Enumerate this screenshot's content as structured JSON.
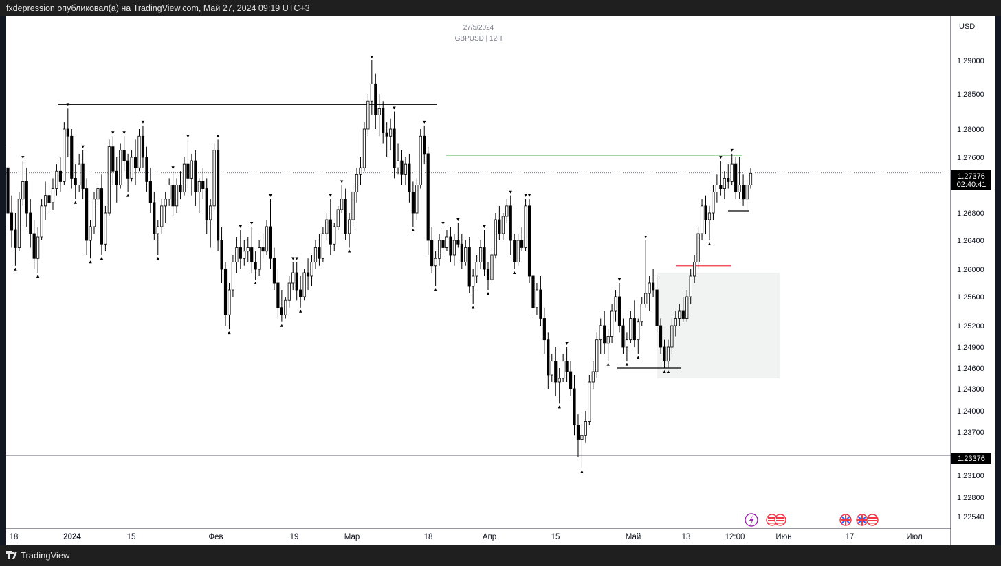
{
  "header": {
    "publisher": "fxdepression опубликовал(а) на TradingView.com, Май 27, 2024 09:19 UTC+3"
  },
  "footer": {
    "brand": "TradingView"
  },
  "chart_data": {
    "type": "candlestick",
    "title": "27/5/2024",
    "subtitle": "GBPUSD | 12H",
    "currency": "USD",
    "y_ticks": [
      1.29,
      1.285,
      1.28,
      1.276,
      1.268,
      1.264,
      1.26,
      1.256,
      1.252,
      1.249,
      1.246,
      1.243,
      1.24,
      1.237,
      1.231,
      1.228,
      1.2254
    ],
    "y_tick_labels": [
      "1.29000",
      "1.28500",
      "1.28000",
      "1.27600",
      "1.26800",
      "1.26400",
      "1.26000",
      "1.25600",
      "1.25200",
      "1.24900",
      "1.24600",
      "1.24300",
      "1.24000",
      "1.23700",
      "1.23100",
      "1.22800",
      "1.22540"
    ],
    "x_tick_labels": [
      "18",
      "2024",
      "15",
      "Фев",
      "19",
      "Мар",
      "18",
      "Апр",
      "15",
      "Май",
      "13",
      "12:00",
      "Июн",
      "17",
      "Июл"
    ],
    "current_price": {
      "value": 1.27376,
      "label": "1.27376",
      "countdown": "02:40:41"
    },
    "horizontal_line": {
      "value": 1.23376,
      "label": "1.23376"
    },
    "levels": [
      {
        "name": "march-high-line",
        "value": 1.2835,
        "color": "#000000"
      },
      {
        "name": "green-level-line",
        "value": 1.2763,
        "color": "#4caf50"
      },
      {
        "name": "red-level-line",
        "value": 1.2605,
        "color": "#f23645"
      }
    ],
    "zone": {
      "top": 1.2595,
      "bottom": 1.2445,
      "color": "#f0f3f2"
    },
    "colors": {
      "up": "#ffffff",
      "down": "#000000",
      "wick": "#000000"
    },
    "candles": [
      [
        1.2745,
        1.2775,
        1.265,
        1.268
      ],
      [
        1.268,
        1.2705,
        1.263,
        1.2655
      ],
      [
        1.2655,
        1.268,
        1.2605,
        1.263
      ],
      [
        1.263,
        1.271,
        1.2625,
        1.27
      ],
      [
        1.27,
        1.2755,
        1.269,
        1.2725
      ],
      [
        1.2725,
        1.2745,
        1.266,
        1.268
      ],
      [
        1.268,
        1.27,
        1.263,
        1.265
      ],
      [
        1.265,
        1.267,
        1.26,
        1.2615
      ],
      [
        1.2615,
        1.266,
        1.2595,
        1.2645
      ],
      [
        1.2645,
        1.27,
        1.264,
        1.269
      ],
      [
        1.269,
        1.2725,
        1.267,
        1.2705
      ],
      [
        1.2705,
        1.272,
        1.268,
        1.2695
      ],
      [
        1.2695,
        1.273,
        1.2685,
        1.2715
      ],
      [
        1.2715,
        1.275,
        1.2705,
        1.274
      ],
      [
        1.274,
        1.276,
        1.271,
        1.2725
      ],
      [
        1.2725,
        1.281,
        1.272,
        1.28
      ],
      [
        1.28,
        1.283,
        1.276,
        1.279
      ],
      [
        1.279,
        1.28,
        1.2715,
        1.273
      ],
      [
        1.273,
        1.275,
        1.27,
        1.272
      ],
      [
        1.272,
        1.2765,
        1.271,
        1.275
      ],
      [
        1.275,
        1.277,
        1.27,
        1.2715
      ],
      [
        1.2715,
        1.273,
        1.262,
        1.264
      ],
      [
        1.264,
        1.267,
        1.2615,
        1.266
      ],
      [
        1.266,
        1.271,
        1.265,
        1.27
      ],
      [
        1.27,
        1.2725,
        1.269,
        1.2715
      ],
      [
        1.2715,
        1.2735,
        1.262,
        1.2635
      ],
      [
        1.2635,
        1.269,
        1.2625,
        1.268
      ],
      [
        1.268,
        1.2785,
        1.2675,
        1.2775
      ],
      [
        1.2775,
        1.279,
        1.272,
        1.274
      ],
      [
        1.274,
        1.276,
        1.2695,
        1.272
      ],
      [
        1.272,
        1.278,
        1.2715,
        1.277
      ],
      [
        1.277,
        1.279,
        1.274,
        1.2755
      ],
      [
        1.2755,
        1.2765,
        1.271,
        1.273
      ],
      [
        1.273,
        1.277,
        1.2725,
        1.276
      ],
      [
        1.276,
        1.2785,
        1.272,
        1.2745
      ],
      [
        1.2745,
        1.28,
        1.274,
        1.279
      ],
      [
        1.279,
        1.2805,
        1.2745,
        1.276
      ],
      [
        1.276,
        1.2775,
        1.271,
        1.2725
      ],
      [
        1.2725,
        1.2745,
        1.268,
        1.2695
      ],
      [
        1.2695,
        1.271,
        1.264,
        1.265
      ],
      [
        1.265,
        1.267,
        1.262,
        1.266
      ],
      [
        1.266,
        1.27,
        1.265,
        1.269
      ],
      [
        1.269,
        1.271,
        1.2665,
        1.27
      ],
      [
        1.27,
        1.273,
        1.269,
        1.272
      ],
      [
        1.272,
        1.274,
        1.2675,
        1.269
      ],
      [
        1.269,
        1.273,
        1.268,
        1.272
      ],
      [
        1.272,
        1.274,
        1.27,
        1.271
      ],
      [
        1.271,
        1.276,
        1.2705,
        1.275
      ],
      [
        1.275,
        1.2785,
        1.2715,
        1.273
      ],
      [
        1.273,
        1.2765,
        1.2705,
        1.2755
      ],
      [
        1.2755,
        1.277,
        1.269,
        1.271
      ],
      [
        1.271,
        1.273,
        1.268,
        1.2725
      ],
      [
        1.2725,
        1.2745,
        1.27,
        1.2715
      ],
      [
        1.2715,
        1.273,
        1.265,
        1.267
      ],
      [
        1.267,
        1.27,
        1.263,
        1.269
      ],
      [
        1.269,
        1.278,
        1.2685,
        1.277
      ],
      [
        1.277,
        1.2785,
        1.2625,
        1.264
      ],
      [
        1.264,
        1.266,
        1.258,
        1.26
      ],
      [
        1.26,
        1.261,
        1.252,
        1.2535
      ],
      [
        1.2535,
        1.258,
        1.2515,
        1.257
      ],
      [
        1.257,
        1.262,
        1.256,
        1.261
      ],
      [
        1.261,
        1.2645,
        1.2595,
        1.263
      ],
      [
        1.263,
        1.2655,
        1.26,
        1.2615
      ],
      [
        1.2615,
        1.264,
        1.2605,
        1.2625
      ],
      [
        1.2625,
        1.2645,
        1.261,
        1.263
      ],
      [
        1.263,
        1.266,
        1.2595,
        1.261
      ],
      [
        1.261,
        1.2625,
        1.2585,
        1.26
      ],
      [
        1.26,
        1.264,
        1.259,
        1.263
      ],
      [
        1.263,
        1.265,
        1.2615,
        1.2625
      ],
      [
        1.2625,
        1.267,
        1.262,
        1.266
      ],
      [
        1.266,
        1.27,
        1.26,
        1.2615
      ],
      [
        1.2615,
        1.263,
        1.257,
        1.258
      ],
      [
        1.258,
        1.26,
        1.253,
        1.2545
      ],
      [
        1.2545,
        1.257,
        1.2525,
        1.2535
      ],
      [
        1.2535,
        1.256,
        1.253,
        1.2555
      ],
      [
        1.2555,
        1.259,
        1.2545,
        1.258
      ],
      [
        1.258,
        1.261,
        1.257,
        1.2595
      ],
      [
        1.2595,
        1.261,
        1.2555,
        1.257
      ],
      [
        1.257,
        1.259,
        1.2545,
        1.256
      ],
      [
        1.256,
        1.26,
        1.2555,
        1.2595
      ],
      [
        1.2595,
        1.2615,
        1.257,
        1.259
      ],
      [
        1.259,
        1.262,
        1.2575,
        1.261
      ],
      [
        1.261,
        1.264,
        1.26,
        1.263
      ],
      [
        1.263,
        1.265,
        1.2605,
        1.2615
      ],
      [
        1.2615,
        1.266,
        1.261,
        1.265
      ],
      [
        1.265,
        1.268,
        1.264,
        1.267
      ],
      [
        1.267,
        1.27,
        1.262,
        1.2635
      ],
      [
        1.2635,
        1.2665,
        1.2625,
        1.266
      ],
      [
        1.266,
        1.269,
        1.2655,
        1.2685
      ],
      [
        1.2685,
        1.272,
        1.268,
        1.27
      ],
      [
        1.27,
        1.2715,
        1.264,
        1.265
      ],
      [
        1.265,
        1.268,
        1.263,
        1.267
      ],
      [
        1.267,
        1.272,
        1.266,
        1.271
      ],
      [
        1.271,
        1.2745,
        1.2695,
        1.2735
      ],
      [
        1.2735,
        1.276,
        1.272,
        1.2745
      ],
      [
        1.2745,
        1.281,
        1.274,
        1.28
      ],
      [
        1.28,
        1.285,
        1.279,
        1.284
      ],
      [
        1.284,
        1.29,
        1.282,
        1.2865
      ],
      [
        1.2865,
        1.288,
        1.28,
        1.282
      ],
      [
        1.282,
        1.285,
        1.279,
        1.283
      ],
      [
        1.283,
        1.284,
        1.278,
        1.2795
      ],
      [
        1.2795,
        1.281,
        1.276,
        1.279
      ],
      [
        1.279,
        1.2815,
        1.277,
        1.28
      ],
      [
        1.28,
        1.2825,
        1.273,
        1.2745
      ],
      [
        1.2745,
        1.278,
        1.2735,
        1.2755
      ],
      [
        1.2755,
        1.277,
        1.272,
        1.2735
      ],
      [
        1.2735,
        1.276,
        1.272,
        1.275
      ],
      [
        1.275,
        1.2765,
        1.2695,
        1.271
      ],
      [
        1.271,
        1.2725,
        1.266,
        1.268
      ],
      [
        1.268,
        1.273,
        1.267,
        1.272
      ],
      [
        1.272,
        1.28,
        1.2715,
        1.279
      ],
      [
        1.279,
        1.2805,
        1.275,
        1.2765
      ],
      [
        1.2765,
        1.2775,
        1.262,
        1.264
      ],
      [
        1.264,
        1.266,
        1.2595,
        1.2605
      ],
      [
        1.2605,
        1.2625,
        1.2575,
        1.2615
      ],
      [
        1.2615,
        1.265,
        1.2605,
        1.264
      ],
      [
        1.264,
        1.266,
        1.262,
        1.263
      ],
      [
        1.263,
        1.2655,
        1.2625,
        1.2645
      ],
      [
        1.2645,
        1.266,
        1.261,
        1.262
      ],
      [
        1.262,
        1.265,
        1.2605,
        1.264
      ],
      [
        1.264,
        1.2665,
        1.263,
        1.2635
      ],
      [
        1.2635,
        1.265,
        1.26,
        1.261
      ],
      [
        1.261,
        1.264,
        1.2605,
        1.263
      ],
      [
        1.263,
        1.2645,
        1.2565,
        1.2575
      ],
      [
        1.2575,
        1.26,
        1.255,
        1.259
      ],
      [
        1.259,
        1.262,
        1.258,
        1.261
      ],
      [
        1.261,
        1.264,
        1.26,
        1.263
      ],
      [
        1.263,
        1.2655,
        1.259,
        1.26
      ],
      [
        1.26,
        1.261,
        1.257,
        1.2585
      ],
      [
        1.2585,
        1.263,
        1.258,
        1.262
      ],
      [
        1.262,
        1.268,
        1.2615,
        1.267
      ],
      [
        1.267,
        1.269,
        1.264,
        1.265
      ],
      [
        1.265,
        1.268,
        1.264,
        1.2675
      ],
      [
        1.2675,
        1.27,
        1.2665,
        1.269
      ],
      [
        1.269,
        1.2705,
        1.262,
        1.264
      ],
      [
        1.264,
        1.265,
        1.26,
        1.261
      ],
      [
        1.261,
        1.265,
        1.2605,
        1.264
      ],
      [
        1.264,
        1.266,
        1.2625,
        1.263
      ],
      [
        1.263,
        1.27,
        1.2625,
        1.269
      ],
      [
        1.269,
        1.27,
        1.258,
        1.259
      ],
      [
        1.259,
        1.26,
        1.253,
        1.2545
      ],
      [
        1.2545,
        1.258,
        1.2535,
        1.257
      ],
      [
        1.257,
        1.259,
        1.252,
        1.253
      ],
      [
        1.253,
        1.2545,
        1.248,
        1.25
      ],
      [
        1.25,
        1.251,
        1.243,
        1.245
      ],
      [
        1.245,
        1.248,
        1.244,
        1.247
      ],
      [
        1.247,
        1.249,
        1.242,
        1.244
      ],
      [
        1.244,
        1.246,
        1.241,
        1.2445
      ],
      [
        1.2445,
        1.248,
        1.244,
        1.247
      ],
      [
        1.247,
        1.249,
        1.244,
        1.2455
      ],
      [
        1.2455,
        1.247,
        1.242,
        1.243
      ],
      [
        1.243,
        1.245,
        1.2365,
        1.238
      ],
      [
        1.238,
        1.2395,
        1.2335,
        1.236
      ],
      [
        1.236,
        1.238,
        1.232,
        1.2365
      ],
      [
        1.2365,
        1.24,
        1.2355,
        1.2385
      ],
      [
        1.2385,
        1.245,
        1.238,
        1.244
      ],
      [
        1.244,
        1.247,
        1.243,
        1.2455
      ],
      [
        1.2455,
        1.251,
        1.2445,
        1.25
      ],
      [
        1.25,
        1.253,
        1.248,
        1.252
      ],
      [
        1.252,
        1.254,
        1.248,
        1.2495
      ],
      [
        1.2495,
        1.2515,
        1.247,
        1.2505
      ],
      [
        1.2505,
        1.255,
        1.2495,
        1.254
      ],
      [
        1.254,
        1.257,
        1.2525,
        1.256
      ],
      [
        1.256,
        1.258,
        1.251,
        1.252
      ],
      [
        1.252,
        1.253,
        1.248,
        1.249
      ],
      [
        1.249,
        1.251,
        1.247,
        1.25
      ],
      [
        1.25,
        1.254,
        1.2495,
        1.253
      ],
      [
        1.253,
        1.2555,
        1.249,
        1.25
      ],
      [
        1.25,
        1.253,
        1.248,
        1.2525
      ],
      [
        1.2525,
        1.256,
        1.252,
        1.255
      ],
      [
        1.255,
        1.264,
        1.2545,
        1.2565
      ],
      [
        1.2565,
        1.259,
        1.254,
        1.258
      ],
      [
        1.258,
        1.26,
        1.256,
        1.257
      ],
      [
        1.257,
        1.259,
        1.251,
        1.252
      ],
      [
        1.252,
        1.253,
        1.248,
        1.249
      ],
      [
        1.249,
        1.25,
        1.246,
        1.247
      ],
      [
        1.247,
        1.25,
        1.246,
        1.249
      ],
      [
        1.249,
        1.253,
        1.248,
        1.252
      ],
      [
        1.252,
        1.254,
        1.2505,
        1.253
      ],
      [
        1.253,
        1.255,
        1.252,
        1.254
      ],
      [
        1.254,
        1.256,
        1.2525,
        1.253
      ],
      [
        1.253,
        1.257,
        1.2525,
        1.256
      ],
      [
        1.256,
        1.26,
        1.255,
        1.259
      ],
      [
        1.259,
        1.262,
        1.258,
        1.261
      ],
      [
        1.261,
        1.266,
        1.26,
        1.265
      ],
      [
        1.265,
        1.27,
        1.264,
        1.269
      ],
      [
        1.269,
        1.2705,
        1.265,
        1.267
      ],
      [
        1.267,
        1.269,
        1.264,
        1.268
      ],
      [
        1.268,
        1.272,
        1.267,
        1.271
      ],
      [
        1.271,
        1.2735,
        1.2695,
        1.272
      ],
      [
        1.272,
        1.2755,
        1.2705,
        1.2715
      ],
      [
        1.2715,
        1.274,
        1.27,
        1.273
      ],
      [
        1.273,
        1.275,
        1.2715,
        1.2725
      ],
      [
        1.2725,
        1.2765,
        1.272,
        1.275
      ],
      [
        1.275,
        1.276,
        1.27,
        1.271
      ],
      [
        1.271,
        1.276,
        1.27,
        1.272
      ],
      [
        1.272,
        1.2735,
        1.269,
        1.27
      ],
      [
        1.27,
        1.273,
        1.2685,
        1.272
      ],
      [
        1.272,
        1.2745,
        1.2715,
        1.2737
      ]
    ]
  }
}
